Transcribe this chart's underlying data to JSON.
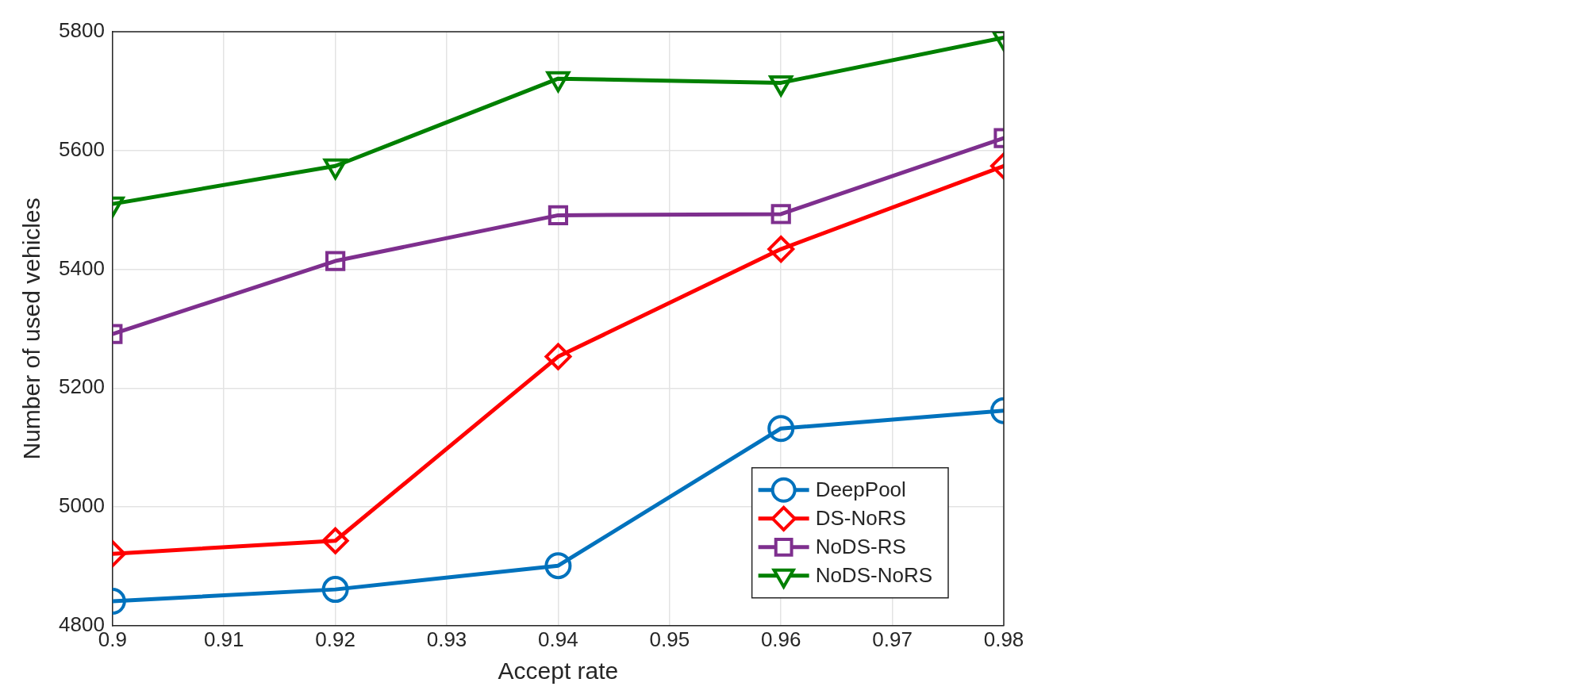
{
  "chart_data": {
    "type": "line",
    "xlabel": "Accept rate",
    "ylabel": "Number of used vehicles",
    "x": [
      0.9,
      0.92,
      0.94,
      0.96,
      0.98
    ],
    "series": [
      {
        "name": "DeepPool",
        "color": "#0072bd",
        "marker": "circle",
        "values": [
          4841,
          4861,
          4901,
          5132,
          5162
        ]
      },
      {
        "name": "DS-NoRS",
        "color": "#ff0000",
        "marker": "diamond",
        "values": [
          4921,
          4943,
          5253,
          5434,
          5574
        ]
      },
      {
        "name": "NoDS-RS",
        "color": "#7e2f8e",
        "marker": "square",
        "values": [
          5291,
          5414,
          5491,
          5493,
          5621
        ]
      },
      {
        "name": "NoDS-NoRS",
        "color": "#008000",
        "marker": "triangle",
        "values": [
          5510,
          5574,
          5721,
          5714,
          5790
        ]
      }
    ],
    "xlim": [
      0.9,
      0.98
    ],
    "xticks": [
      0.9,
      0.91,
      0.92,
      0.93,
      0.94,
      0.95,
      0.96,
      0.97,
      0.98
    ],
    "ylim": [
      4800,
      5800
    ],
    "yticks": [
      4800,
      5000,
      5200,
      5400,
      5600,
      5800
    ],
    "grid": true,
    "legend": "bottom right",
    "line_style": "solid"
  }
}
